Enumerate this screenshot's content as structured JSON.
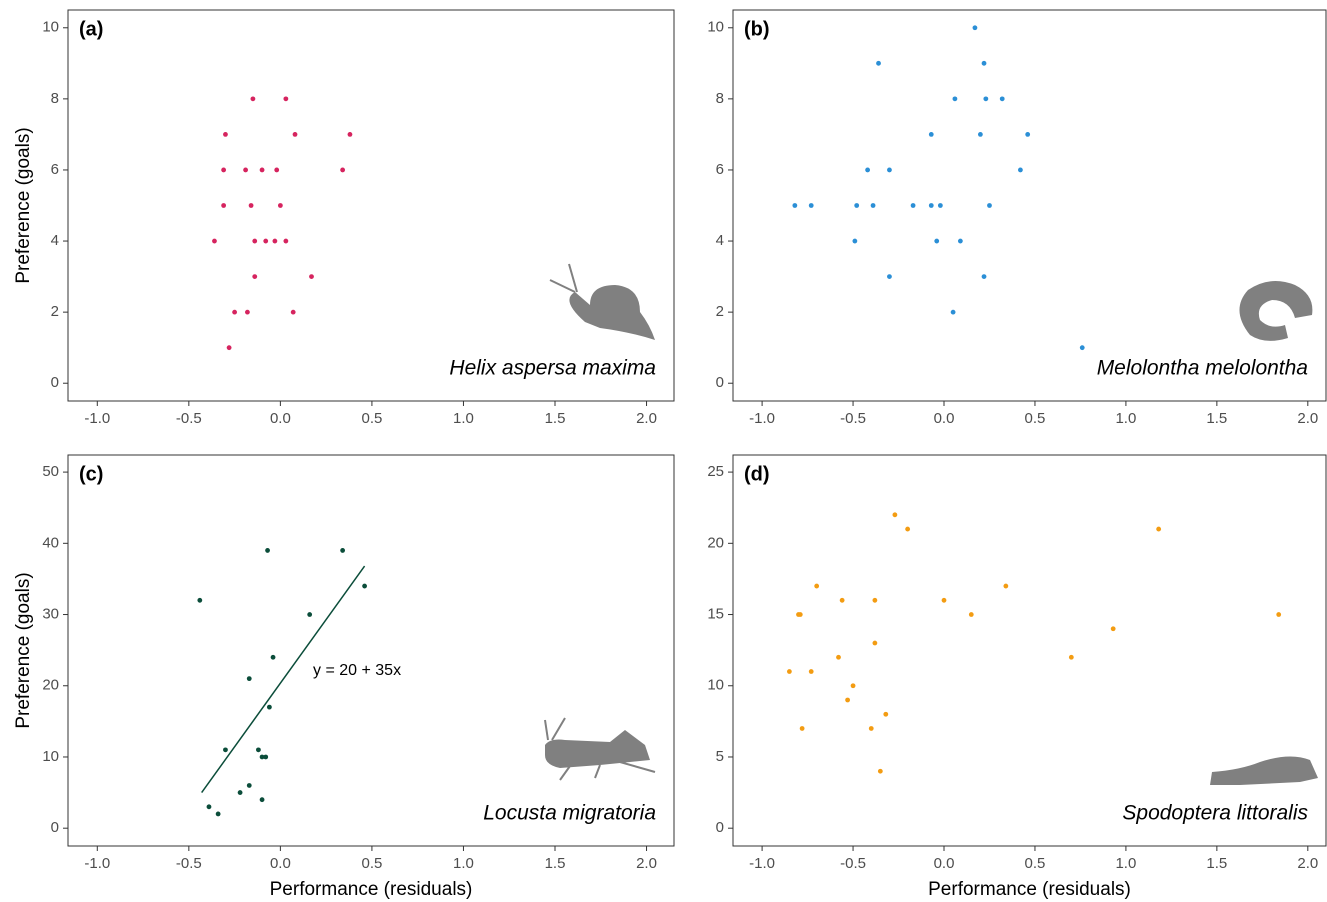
{
  "chart_data": [
    {
      "type": "scatter",
      "label": "(a)",
      "species": "Helix aspersa maxima",
      "color": "#d6245f",
      "y_label": "Preference (goals)",
      "x": [
        -0.15,
        0.03,
        -0.3,
        0.08,
        0.38,
        -0.31,
        -0.19,
        -0.1,
        -0.02,
        0.34,
        -0.31,
        -0.16,
        0.0,
        -0.36,
        -0.14,
        -0.08,
        -0.03,
        0.03,
        -0.14,
        0.17,
        -0.25,
        -0.18,
        0.07,
        -0.28
      ],
      "values": [
        8,
        8,
        7,
        7,
        7,
        6,
        6,
        6,
        6,
        6,
        5,
        5,
        5,
        4,
        4,
        4,
        4,
        4,
        3,
        3,
        2,
        2,
        2,
        1
      ],
      "xlim": [
        -1.16,
        2.15
      ],
      "ylim": [
        -0.5,
        10.5
      ],
      "xticks": [
        {
          "value": -1,
          "label": "-1.0"
        },
        -0.5,
        {
          "value": 0,
          "label": "0.0"
        },
        0.5,
        {
          "value": 1,
          "label": "1.0"
        },
        1.5,
        {
          "value": 2,
          "label": "2.0"
        }
      ],
      "yticks": [
        0,
        2,
        4,
        6,
        8,
        10
      ]
    },
    {
      "type": "scatter",
      "label": "(b)",
      "species": "Melolontha melolontha",
      "color": "#2b8fd6",
      "x": [
        0.17,
        -0.36,
        0.22,
        0.06,
        0.23,
        0.32,
        -0.07,
        0.2,
        0.46,
        -0.42,
        -0.3,
        0.42,
        -0.82,
        -0.73,
        -0.48,
        -0.39,
        -0.17,
        -0.07,
        -0.02,
        0.25,
        -0.49,
        -0.04,
        0.09,
        -0.3,
        0.22,
        0.05,
        0.76
      ],
      "values": [
        10,
        9,
        9,
        8,
        8,
        8,
        7,
        7,
        7,
        6,
        6,
        6,
        5,
        5,
        5,
        5,
        5,
        5,
        5,
        5,
        4,
        4,
        4,
        3,
        3,
        2,
        1
      ],
      "xlim": [
        -1.16,
        2.1
      ],
      "ylim": [
        -0.5,
        10.5
      ],
      "xticks": [
        {
          "value": -1,
          "label": "-1.0"
        },
        -0.5,
        {
          "value": 0,
          "label": "0.0"
        },
        0.5,
        {
          "value": 1,
          "label": "1.0"
        },
        1.5,
        {
          "value": 2,
          "label": "2.0"
        }
      ],
      "yticks": [
        0,
        2,
        4,
        6,
        8,
        10
      ]
    },
    {
      "type": "scatter",
      "label": "(c)",
      "species": "Locusta migratoria",
      "color": "#0b4d3a",
      "y_label": "Preference (goals)",
      "x_label": "Performance (residuals)",
      "x": [
        -0.44,
        -0.07,
        0.34,
        0.46,
        0.16,
        -0.04,
        -0.17,
        -0.06,
        -0.3,
        -0.12,
        -0.1,
        -0.08,
        -0.17,
        -0.22,
        -0.1,
        -0.39,
        -0.34
      ],
      "values": [
        32,
        39,
        39,
        34,
        30,
        24,
        21,
        17,
        11,
        11,
        10,
        10,
        6,
        5,
        4,
        3,
        2
      ],
      "fit": {
        "x": [
          -0.43,
          0.46
        ],
        "y": [
          5,
          36.8
        ]
      },
      "fit_label": "y = 20 + 35x",
      "xlim": [
        -1.16,
        2.15
      ],
      "ylim": [
        -2.5,
        52.4
      ],
      "xticks": [
        {
          "value": -1,
          "label": "-1.0"
        },
        -0.5,
        {
          "value": 0,
          "label": "0.0"
        },
        0.5,
        {
          "value": 1,
          "label": "1.0"
        },
        1.5,
        {
          "value": 2,
          "label": "2.0"
        }
      ],
      "yticks": [
        0,
        10,
        20,
        30,
        40,
        50
      ]
    },
    {
      "type": "scatter",
      "label": "(d)",
      "species": "Spodoptera littoralis",
      "color": "#f39c12",
      "x_label": "Performance (residuals)",
      "x": [
        -0.27,
        -0.2,
        1.18,
        -0.7,
        0.34,
        -0.8,
        -0.79,
        0.15,
        1.84,
        -0.56,
        -0.38,
        0.0,
        0.93,
        -0.38,
        -0.58,
        0.7,
        -0.85,
        -0.73,
        -0.5,
        -0.53,
        -0.32,
        -0.78,
        -0.4,
        -0.35
      ],
      "values": [
        22,
        21,
        21,
        17,
        17,
        15,
        15,
        15,
        15,
        16,
        16,
        16,
        14,
        13,
        12,
        12,
        11,
        11,
        10,
        9,
        8,
        7,
        7,
        4
      ],
      "xlim": [
        -1.16,
        2.1
      ],
      "ylim": [
        -1.25,
        26.2
      ],
      "xticks": [
        {
          "value": -1,
          "label": "-1.0"
        },
        -0.5,
        {
          "value": 0,
          "label": "0.0"
        },
        0.5,
        {
          "value": 1,
          "label": "1.0"
        },
        1.5,
        {
          "value": 2,
          "label": "2.0"
        }
      ],
      "yticks": [
        0,
        5,
        10,
        15,
        20,
        25
      ]
    }
  ]
}
